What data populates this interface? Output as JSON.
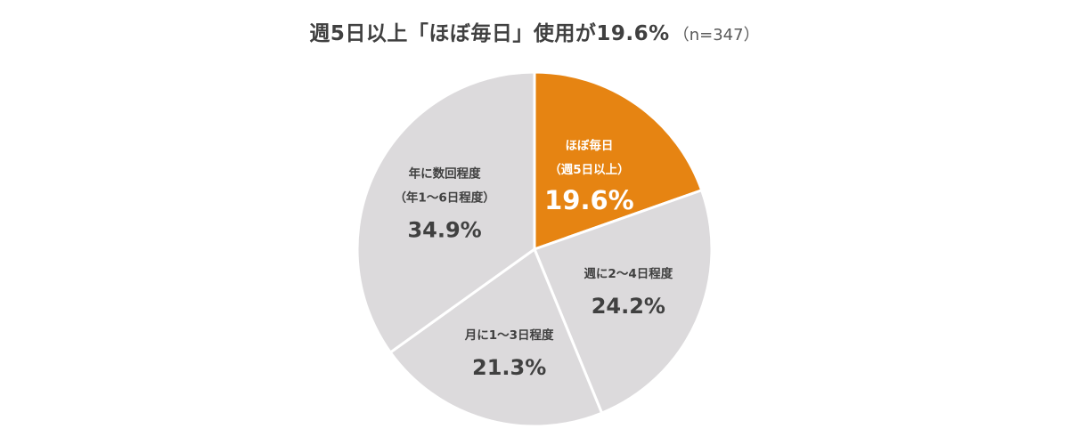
{
  "title": {
    "main": "週5日以上「ほぼ毎日」使用が19.6%",
    "sample": "（n=347）"
  },
  "chart_data": {
    "type": "pie",
    "title": "週5日以上「ほぼ毎日」使用が19.6%",
    "sample_size": "（n=347）",
    "slices": [
      {
        "line1": "ほぼ毎日",
        "line2": "（週5日以上）",
        "value": 19.6,
        "value_label": "19.6%",
        "color": "#E68412",
        "text_color": "#ffffff"
      },
      {
        "line1": "週に2～4日程度",
        "line2": "",
        "value": 24.2,
        "value_label": "24.2%",
        "color": "#DCDADC",
        "text_color": "#404040"
      },
      {
        "line1": "月に1～3日程度",
        "line2": "",
        "value": 21.3,
        "value_label": "21.3%",
        "color": "#DCDADC",
        "text_color": "#404040"
      },
      {
        "line1": "年に数回程度",
        "line2": "（年1～6日程度）",
        "value": 34.9,
        "value_label": "34.9%",
        "color": "#DCDADC",
        "text_color": "#404040"
      }
    ],
    "start_angle": "12 o'clock",
    "direction": "clockwise",
    "legend": "none"
  }
}
